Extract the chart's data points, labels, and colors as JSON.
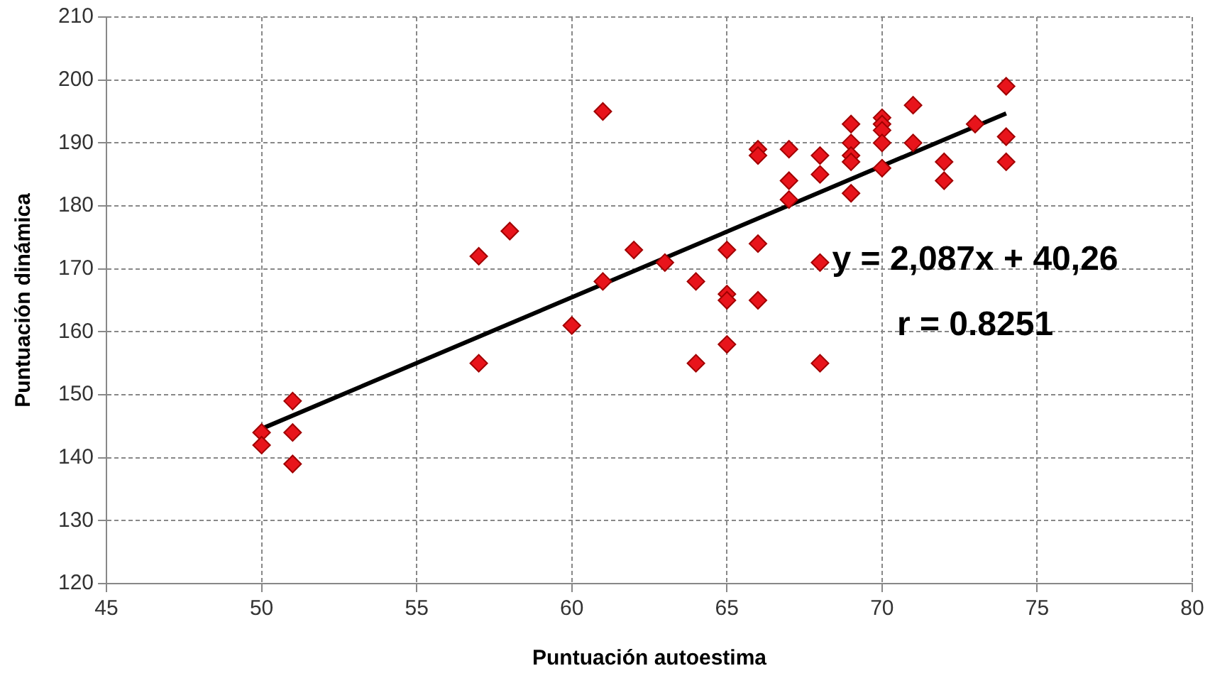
{
  "chart_data": {
    "type": "scatter",
    "xlabel": "Puntuación autoestima",
    "ylabel": "Puntuación dinámica",
    "xlim": [
      45,
      80
    ],
    "xticks": [
      45,
      50,
      55,
      60,
      65,
      70,
      75,
      80
    ],
    "ylim": [
      120,
      210
    ],
    "yticks": [
      120,
      130,
      140,
      150,
      160,
      170,
      180,
      190,
      200,
      210
    ],
    "grid": true,
    "legend": false,
    "marker": "diamond",
    "series": [
      {
        "color": "#e8141b",
        "x": [
          50,
          50,
          51,
          51,
          51,
          57,
          57,
          58,
          60,
          61,
          61,
          62,
          63,
          64,
          64,
          65,
          65,
          65,
          65,
          66,
          66,
          66,
          66,
          67,
          67,
          67,
          68,
          68,
          68,
          68,
          69,
          69,
          69,
          69,
          69,
          70,
          70,
          70,
          70,
          70,
          71,
          71,
          72,
          72,
          73,
          74,
          74,
          74
        ],
        "values": [
          144,
          142,
          149,
          144,
          139,
          172,
          155,
          176,
          161,
          195,
          168,
          173,
          171,
          168,
          155,
          173,
          166,
          165,
          158,
          189,
          188,
          174,
          165,
          189,
          184,
          181,
          188,
          185,
          171,
          155,
          193,
          190,
          188,
          187,
          182,
          194,
          193,
          192,
          190,
          186,
          196,
          190,
          187,
          184,
          193,
          199,
          191,
          187
        ]
      },
      {
        "type": "line",
        "color": "#000000",
        "marker": "none",
        "x": [
          50,
          74
        ],
        "values": [
          144.6,
          194.7
        ]
      }
    ],
    "annotations": [
      "y = 2,087x + 40,26",
      "r = 0.8251"
    ]
  }
}
